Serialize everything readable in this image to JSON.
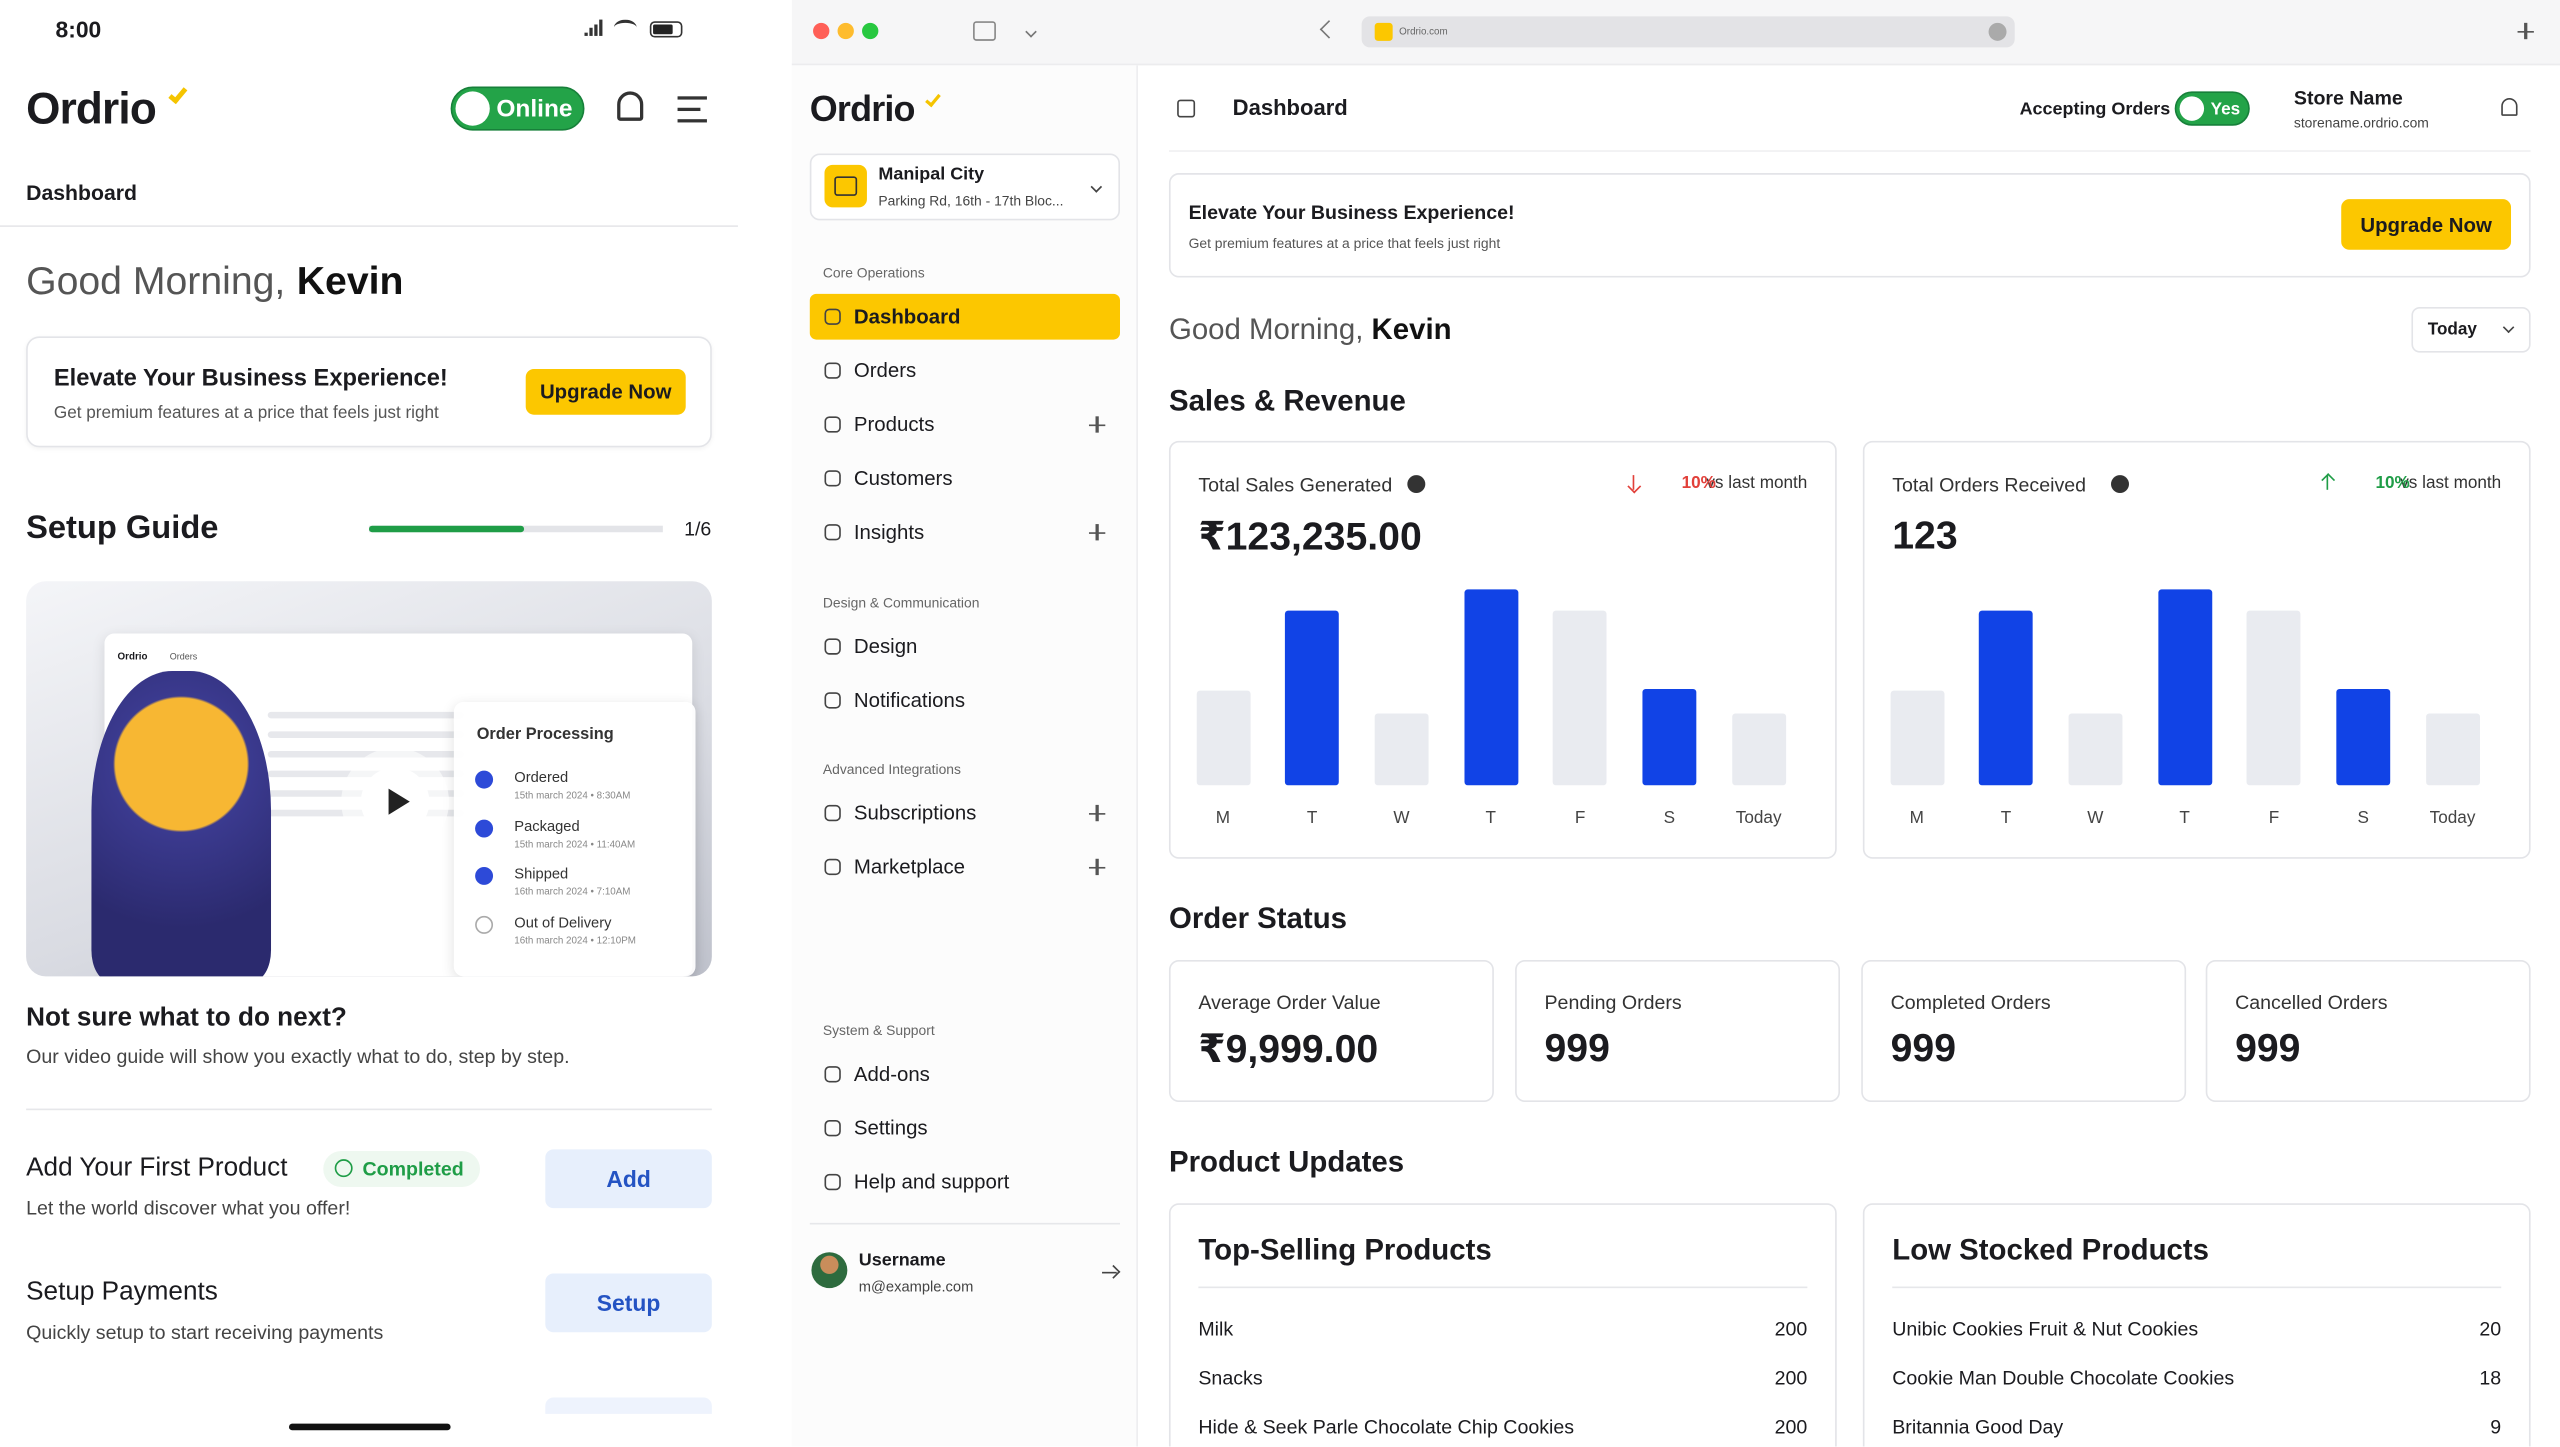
{
  "mobile": {
    "time": "8:00",
    "logo": "Ordrio",
    "status_toggle": "Online",
    "breadcrumb": "Dashboard",
    "greeting": "Good Morning,",
    "user": "Kevin",
    "promo": {
      "title": "Elevate Your Business Experience!",
      "subtitle": "Get premium features at a price that feels just right",
      "button": "Upgrade Now"
    },
    "setup": {
      "title": "Setup Guide",
      "progress": "1/6",
      "progress_fill": 53
    },
    "video": {
      "brand": "Ordrio",
      "tab": "Orders",
      "panel_title": "Order Processing",
      "steps": [
        {
          "label": "Ordered",
          "time": "15th march 2024 • 8:30AM"
        },
        {
          "label": "Packaged",
          "time": "15th march 2024 • 11:40AM"
        },
        {
          "label": "Shipped",
          "time": "16th march 2024 • 7:10AM"
        },
        {
          "label": "Out of Delivery",
          "time": "16th march 2024 • 12:10PM"
        }
      ]
    },
    "help": {
      "title": "Not sure what to do next?",
      "text": "Our video guide will show you exactly what to do, step by step."
    },
    "tasks": [
      {
        "title": "Add Your First Product",
        "badge": "Completed",
        "text": "Let the world discover what you offer!",
        "button": "Add"
      },
      {
        "title": "Setup Payments",
        "text": "Quickly setup to start receiving payments",
        "button": "Setup"
      }
    ]
  },
  "browser": {
    "url": "Ordrio.com"
  },
  "sidebar": {
    "logo": "Ordrio",
    "store": {
      "name": "Manipal City",
      "address": "Parking Rd, 16th - 17th Bloc..."
    },
    "groups": [
      {
        "label": "Core Operations",
        "items": [
          {
            "label": "Dashboard",
            "active": true
          },
          {
            "label": "Orders"
          },
          {
            "label": "Products",
            "expandable": true
          },
          {
            "label": "Customers"
          },
          {
            "label": "Insights",
            "expandable": true
          }
        ]
      },
      {
        "label": "Design & Communication",
        "items": [
          {
            "label": "Design"
          },
          {
            "label": "Notifications"
          }
        ]
      },
      {
        "label": "Advanced Integrations",
        "items": [
          {
            "label": "Subscriptions",
            "expandable": true
          },
          {
            "label": "Marketplace",
            "expandable": true
          }
        ]
      },
      {
        "label": "System & Support",
        "items": [
          {
            "label": "Add-ons"
          },
          {
            "label": "Settings"
          },
          {
            "label": "Help and support"
          }
        ]
      }
    ],
    "user": {
      "name": "Username",
      "email": "m@example.com"
    }
  },
  "dashboard": {
    "title": "Dashboard",
    "accepting_label": "Accepting Orders",
    "accepting_toggle": "Yes",
    "store_name": "Store Name",
    "store_url": "storename.ordrio.com",
    "promo": {
      "title": "Elevate Your Business Experience!",
      "subtitle": "Get premium features at a price that feels just right",
      "button": "Upgrade Now"
    },
    "greeting": "Good Morning,",
    "user": "Kevin",
    "range": "Today",
    "sales": {
      "title": "Sales & Revenue",
      "cards": [
        {
          "title": "Total Sales Generated",
          "change": "10%",
          "trend": "down",
          "compare": "vs last month",
          "value": "₹123,235.00",
          "chart": {
            "type": "bar",
            "categories": [
              "M",
              "T",
              "W",
              "T",
              "F",
              "S",
              "Today"
            ],
            "values": [
              58,
              107,
              44,
              120,
              107,
              59,
              44
            ],
            "colors": [
              "#e9ebf0",
              "#1143e6",
              "#e9ebf0",
              "#1143e6",
              "#e9ebf0",
              "#1143e6",
              "#e9ebf0"
            ]
          }
        },
        {
          "title": "Total Orders Received",
          "change": "10%",
          "trend": "up",
          "compare": "vs last month",
          "value": "123",
          "chart": {
            "type": "bar",
            "categories": [
              "M",
              "T",
              "W",
              "T",
              "F",
              "S",
              "Today"
            ],
            "values": [
              58,
              107,
              44,
              120,
              107,
              59,
              44
            ],
            "colors": [
              "#e9ebf0",
              "#1143e6",
              "#e9ebf0",
              "#1143e6",
              "#e9ebf0",
              "#1143e6",
              "#e9ebf0"
            ]
          }
        }
      ]
    },
    "order_status": {
      "title": "Order Status",
      "metrics": [
        {
          "label": "Average Order Value",
          "value": "₹9,999.00"
        },
        {
          "label": "Pending Orders",
          "value": "999"
        },
        {
          "label": "Completed Orders",
          "value": "999"
        },
        {
          "label": "Cancelled Orders",
          "value": "999"
        }
      ]
    },
    "products": {
      "title": "Product Updates",
      "lists": [
        {
          "title": "Top-Selling Products",
          "items": [
            {
              "name": "Milk",
              "qty": "200"
            },
            {
              "name": "Snacks",
              "qty": "200"
            },
            {
              "name": "Hide & Seek Parle Chocolate Chip Cookies",
              "qty": "200"
            }
          ]
        },
        {
          "title": "Low Stocked Products",
          "items": [
            {
              "name": "Unibic Cookies Fruit & Nut Cookies",
              "qty": "20"
            },
            {
              "name": "Cookie Man Double Chocolate Cookies",
              "qty": "18"
            },
            {
              "name": "Britannia Good Day",
              "qty": "9"
            }
          ]
        }
      ]
    }
  }
}
